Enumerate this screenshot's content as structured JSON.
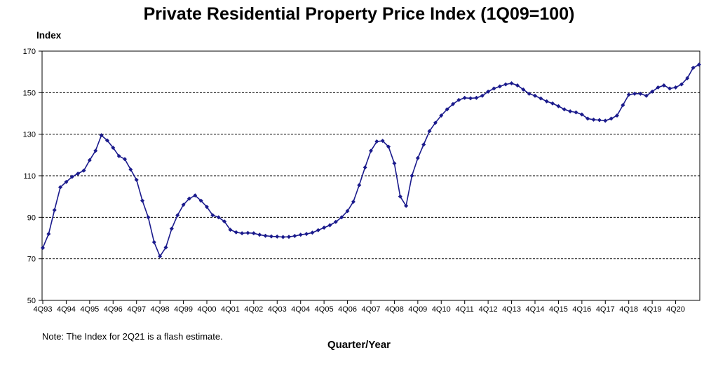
{
  "chart_data": {
    "type": "line",
    "title": "Private Residential Property Price Index (1Q09=100)",
    "ylabel": "Index",
    "xlabel": "Quarter/Year",
    "note": "Note: The Index for 2Q21 is a flash estimate.",
    "ylim": [
      50,
      170
    ],
    "yticks": [
      50,
      70,
      90,
      110,
      130,
      150,
      170
    ],
    "grid": "horizontal dashed",
    "series_color": "#1a1a8c",
    "x_tick_labels": [
      "4Q93",
      "4Q94",
      "4Q95",
      "4Q96",
      "4Q97",
      "4Q98",
      "4Q99",
      "4Q00",
      "4Q01",
      "4Q02",
      "4Q03",
      "4Q04",
      "4Q05",
      "4Q06",
      "4Q07",
      "4Q08",
      "4Q09",
      "4Q10",
      "4Q11",
      "4Q12",
      "4Q13",
      "4Q14",
      "4Q15",
      "4Q16",
      "4Q17",
      "4Q18",
      "4Q19",
      "4Q20"
    ],
    "x_start": "4Q93",
    "x_end": "2Q21",
    "series": [
      {
        "values": [
          75.3,
          82.0,
          93.5,
          104.5,
          107.0,
          109.5,
          111.0,
          112.5,
          117.5,
          122.0,
          129.5,
          127.0,
          123.5,
          119.5,
          118.0,
          113.0,
          108.0,
          98.0,
          90.0,
          78.0,
          71.2,
          75.5,
          84.5,
          91.0,
          96.0,
          99.0,
          100.5,
          98.0,
          95.0,
          91.0,
          90.0,
          88.0,
          84.0,
          82.8,
          82.3,
          82.5,
          82.3,
          81.6,
          81.1,
          80.8,
          80.7,
          80.5,
          80.6,
          81.0,
          81.6,
          82.0,
          82.6,
          83.8,
          85.0,
          86.2,
          87.8,
          90.0,
          93.0,
          97.5,
          105.5,
          114.0,
          122.0,
          126.5,
          126.8,
          124.0,
          116.0,
          100.0,
          95.5,
          110.0,
          118.5,
          125.0,
          131.5,
          135.5,
          139.0,
          142.0,
          144.5,
          146.5,
          147.5,
          147.3,
          147.5,
          148.5,
          150.5,
          152.0,
          153.0,
          154.0,
          154.5,
          153.5,
          151.5,
          149.5,
          148.5,
          147.2,
          145.8,
          144.8,
          143.5,
          142.0,
          141.0,
          140.5,
          139.5,
          137.5,
          137.0,
          136.8,
          136.5,
          137.5,
          139.0,
          144.0,
          149.0,
          149.5,
          149.5,
          148.5,
          150.5,
          152.5,
          153.5,
          152.0,
          152.5,
          154.0,
          157.0,
          162.0,
          163.5
        ]
      }
    ]
  }
}
